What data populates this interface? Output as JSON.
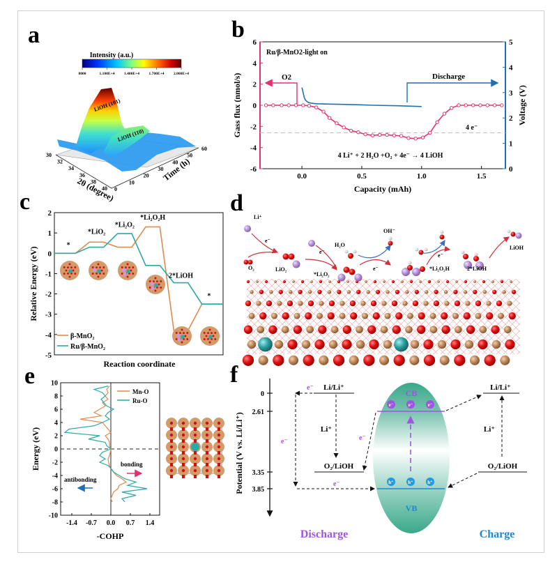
{
  "figure": {
    "panel_labels": [
      "a",
      "b",
      "c",
      "d",
      "e",
      "f"
    ]
  },
  "chart_data": [
    {
      "panel": "a",
      "type": "heatmap",
      "title": "Intensity (a.u.)",
      "colorbar_ticks": [
        "8000",
        "1.100E+4",
        "1.400E+4",
        "1.700E+4",
        "2.000E+4"
      ],
      "colorbar_range": [
        8000,
        20000
      ],
      "xlabel": "2θ (degree)",
      "x_ticks": [
        "30",
        "32",
        "34",
        "36",
        "38",
        "40"
      ],
      "ylabel": "Time (h)",
      "y_ticks": [
        "0",
        "10",
        "20",
        "30",
        "40",
        "50",
        "60"
      ],
      "annotations": [
        "LiOH (101)",
        "LiOH (110)"
      ],
      "peaks": [
        {
          "name": "LiOH (101)",
          "two_theta": 32.5,
          "max_intensity": 20000
        },
        {
          "name": "LiOH (110)",
          "two_theta": 35.6,
          "max_intensity": 14000
        }
      ]
    },
    {
      "panel": "b",
      "type": "line",
      "title": "Ru/β-MnO2-light on",
      "xlabel": "Capacity (mAh)",
      "ylabel": "Gass flux (nmol/s)",
      "y2label": "Voltage (V)",
      "xlim": [
        -0.35,
        1.7
      ],
      "ylim": [
        -6,
        6
      ],
      "y2lim": [
        0,
        5
      ],
      "x_ticks": [
        "0.0",
        "0.5",
        "1.0",
        "1.5"
      ],
      "y_ticks": [
        "-6",
        "-4",
        "-2",
        "0",
        "2",
        "4",
        "6"
      ],
      "y2_ticks": [
        "0",
        "1",
        "2",
        "3",
        "4",
        "5"
      ],
      "annotations": {
        "o2_label": "O2",
        "discharge_label": "Discharge",
        "electrons_label": "4 e⁻",
        "reaction": "4 Li⁺ + 2 H₂O +O₂ + 4e⁻ → 4 LiOH",
        "four_e_line": -2.6
      },
      "series": [
        {
          "name": "O2 flux",
          "color": "#e0336b",
          "x": [
            -0.3,
            -0.24,
            -0.17,
            -0.11,
            -0.05,
            0.01,
            0.06,
            0.12,
            0.18,
            0.23,
            0.29,
            0.35,
            0.41,
            0.47,
            0.53,
            0.59,
            0.65,
            0.71,
            0.77,
            0.83,
            0.89,
            0.95,
            1.01,
            1.07,
            1.13,
            1.19,
            1.25,
            1.31,
            1.37,
            1.43,
            1.49,
            1.55,
            1.61,
            1.67
          ],
          "y": [
            0,
            0,
            0,
            0,
            0,
            0,
            -0.05,
            -0.2,
            -0.6,
            -1.2,
            -1.7,
            -2.1,
            -2.4,
            -2.55,
            -2.75,
            -2.85,
            -2.8,
            -2.8,
            -2.85,
            -2.9,
            -3.1,
            -3.15,
            -3.05,
            -2.6,
            -1.6,
            -0.8,
            -0.25,
            0,
            0,
            0,
            0,
            0,
            0,
            0
          ]
        },
        {
          "name": "Discharge voltage",
          "color": "#1f6fb2",
          "axis": "right",
          "x": [
            0.0,
            0.01,
            0.02,
            0.03,
            0.05,
            0.08,
            0.12,
            0.2,
            0.4,
            0.6,
            0.8,
            1.0
          ],
          "y": [
            3.2,
            3.0,
            2.8,
            2.7,
            2.62,
            2.58,
            2.56,
            2.55,
            2.53,
            2.5,
            2.48,
            2.45
          ]
        }
      ]
    },
    {
      "panel": "c",
      "type": "line",
      "xlabel": "Reaction coordinate",
      "ylabel": "Relative Energy (eV)",
      "ylim": [
        -5,
        2
      ],
      "y_ticks": [
        "-5",
        "-4",
        "-3",
        "-2",
        "-1",
        "0",
        "1",
        "2"
      ],
      "categories": [
        "*",
        "*LiO2",
        "*Li2O2",
        "*Li2O2H",
        "2*LiOH",
        "*"
      ],
      "category_labels": [
        "*",
        "*LiO₂",
        "*Li₂O₂",
        "*Li₂O₂H",
        "2*LiOH",
        "*"
      ],
      "series": [
        {
          "name": "β-MnO₂",
          "color": "#e08a4e",
          "values": [
            0,
            0.55,
            0.3,
            1.3,
            -3.8,
            -2.5
          ]
        },
        {
          "name": "Ru/β-MnO₂",
          "color": "#2aa9a5",
          "values": [
            0,
            0.3,
            0.97,
            -0.6,
            -1.45,
            -2.5
          ]
        }
      ]
    },
    {
      "panel": "e",
      "type": "line",
      "xlabel": "-COHP",
      "ylabel": "Energy (eV)",
      "xlim": [
        -1.8,
        1.75
      ],
      "ylim": [
        -10,
        10
      ],
      "x_ticks": [
        "-1.4",
        "-0.7",
        "0.0",
        "0.7",
        "1.4"
      ],
      "y_ticks": [
        "-10",
        "-8",
        "-6",
        "-4",
        "-2",
        "0",
        "2",
        "4",
        "6",
        "8",
        "10"
      ],
      "annotations": {
        "antibonding": "antibonding",
        "bonding": "bonding"
      },
      "series": [
        {
          "name": "Mn-O",
          "color": "#e08a4e",
          "energy": [
            9.5,
            9,
            8.5,
            8,
            7.5,
            7,
            6.5,
            6,
            5.5,
            5,
            4.5,
            4,
            3.5,
            3,
            2.5,
            2,
            1.5,
            1,
            0.5,
            0,
            -0.5,
            -1,
            -1.5,
            -2,
            -2.5,
            -3,
            -3.5,
            -4,
            -4.5,
            -5,
            -5.5,
            -6,
            -6.5,
            -7,
            -7.5,
            -8
          ],
          "cohp": [
            -0.05,
            -0.15,
            -0.1,
            -0.2,
            -0.1,
            -0.3,
            -0.2,
            -0.4,
            -0.6,
            -0.35,
            -1.1,
            -0.3,
            -0.2,
            -0.1,
            0.0,
            -0.2,
            -0.1,
            -0.05,
            -0.05,
            0,
            -0.02,
            -0.05,
            -0.1,
            -0.08,
            -0.05,
            0.0,
            0.1,
            0.2,
            0.4,
            0.55,
            0.3,
            0.25,
            0.1,
            0.05,
            0.0,
            0.05
          ]
        },
        {
          "name": "Ru-O",
          "color": "#2aa9a5",
          "energy": [
            9.5,
            9,
            8.5,
            8,
            7.5,
            7,
            6.5,
            6,
            5.5,
            5,
            4.5,
            4,
            3.5,
            3,
            2.5,
            2,
            1.5,
            1,
            0.5,
            0,
            -0.5,
            -1,
            -1.5,
            -2,
            -2.5,
            -3,
            -3.5,
            -4,
            -4.5,
            -5,
            -5.5,
            -6,
            -6.5,
            -7,
            -7.5,
            -8
          ],
          "cohp": [
            -0.1,
            -0.6,
            -0.3,
            -0.2,
            -0.35,
            -0.25,
            -0.15,
            0.1,
            -0.1,
            -0.2,
            -0.05,
            -0.3,
            -0.6,
            -1.5,
            -1.65,
            -0.4,
            -0.8,
            -0.2,
            -0.15,
            0,
            -0.3,
            -0.4,
            -0.2,
            -0.4,
            -0.1,
            0.02,
            0.1,
            0.3,
            0.5,
            0.9,
            0.6,
            1.3,
            0.4,
            0.9,
            0.4,
            0.5
          ]
        }
      ]
    },
    {
      "panel": "f",
      "type": "diagram",
      "ylabel": "Potential (V vs. Li/Li⁺)",
      "y_ticks": [
        "0",
        "2.61",
        "3.35",
        "3.85"
      ],
      "levels": {
        "li_li": 0,
        "cb": 2.61,
        "o2_lioh": 3.35,
        "vb": 3.85
      }
    }
  ],
  "panel_d": {
    "labels": {
      "li_plus": "Li⁺",
      "o2": "O₂",
      "lio2": "LiO₂",
      "li2o2": "*Li₂O₂",
      "h2o": "H₂O",
      "oh_minus": "OH⁻",
      "li2o2h": "*Li₂O₂H",
      "two_lioh": "2*LiOH",
      "lioh": "LiOH",
      "electron": "e⁻"
    }
  },
  "panel_f": {
    "li_li_label": "Li/Li⁺",
    "o2_lioh_label": "O₂/LiOH",
    "li_plus": "Li⁺",
    "electron": "e⁻",
    "cb": "CB",
    "vb": "VB",
    "e_particle": "e⁻",
    "h_particle": "h⁺",
    "discharge": "Discharge",
    "charge": "Charge",
    "discharge_color": "#a055e0",
    "charge_color": "#1e88d6"
  }
}
